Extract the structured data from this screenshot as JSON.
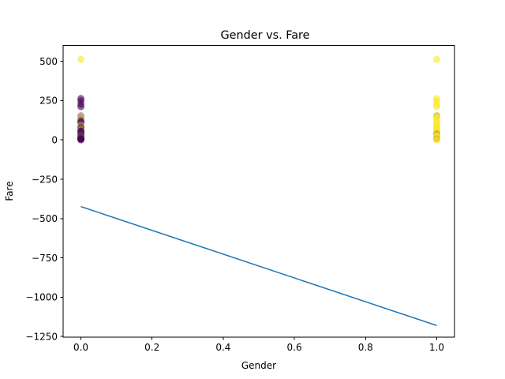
{
  "chart_data": {
    "type": "scatter",
    "title": "Gender vs. Fare",
    "xlabel": "Gender",
    "ylabel": "Fare",
    "xlim": [
      -0.05,
      1.05
    ],
    "ylim": [
      -1255,
      600
    ],
    "grid": false,
    "x_ticks": [
      {
        "value": 0.0,
        "label": "0.0"
      },
      {
        "value": 0.2,
        "label": "0.2"
      },
      {
        "value": 0.4,
        "label": "0.4"
      },
      {
        "value": 0.6,
        "label": "0.6"
      },
      {
        "value": 0.8,
        "label": "0.8"
      },
      {
        "value": 1.0,
        "label": "1.0"
      }
    ],
    "y_ticks": [
      {
        "value": 500,
        "label": "500"
      },
      {
        "value": 250,
        "label": "250"
      },
      {
        "value": 0,
        "label": "0"
      },
      {
        "value": -250,
        "label": "−250"
      },
      {
        "value": -500,
        "label": "−500"
      },
      {
        "value": -750,
        "label": "−750"
      },
      {
        "value": -1000,
        "label": "−1000"
      },
      {
        "value": -1250,
        "label": "−1250"
      }
    ],
    "colors": {
      "purple": "#440154",
      "violet": "#5b2a6e",
      "brown": "#8a6d4e",
      "olive": "#b59e36",
      "yellow": "#fde725",
      "line": "#1f77b4"
    },
    "points": [
      {
        "x": 0,
        "y": 512,
        "color": "yellow"
      },
      {
        "x": 0,
        "y": 263,
        "color": "purple"
      },
      {
        "x": 0,
        "y": 247,
        "color": "purple"
      },
      {
        "x": 0,
        "y": 227,
        "color": "purple"
      },
      {
        "x": 0,
        "y": 211,
        "color": "purple"
      },
      {
        "x": 0,
        "y": 153,
        "color": "brown"
      },
      {
        "x": 0,
        "y": 135,
        "color": "olive"
      },
      {
        "x": 0,
        "y": 120,
        "color": "purple"
      },
      {
        "x": 0,
        "y": 110,
        "color": "purple"
      },
      {
        "x": 0,
        "y": 93,
        "color": "olive"
      },
      {
        "x": 0,
        "y": 82,
        "color": "brown"
      },
      {
        "x": 0,
        "y": 76,
        "color": "purple"
      },
      {
        "x": 0,
        "y": 69,
        "color": "olive"
      },
      {
        "x": 0,
        "y": 56,
        "color": "purple"
      },
      {
        "x": 0,
        "y": 52,
        "color": "purple"
      },
      {
        "x": 0,
        "y": 40,
        "color": "purple"
      },
      {
        "x": 0,
        "y": 30,
        "color": "brown"
      },
      {
        "x": 0,
        "y": 26,
        "color": "purple"
      },
      {
        "x": 0,
        "y": 15,
        "color": "purple"
      },
      {
        "x": 0,
        "y": 13,
        "color": "olive"
      },
      {
        "x": 0,
        "y": 10,
        "color": "purple"
      },
      {
        "x": 0,
        "y": 8,
        "color": "purple"
      },
      {
        "x": 0,
        "y": 7,
        "color": "violet"
      },
      {
        "x": 0,
        "y": 5,
        "color": "purple"
      },
      {
        "x": 0,
        "y": 0,
        "color": "purple"
      },
      {
        "x": 1,
        "y": 512,
        "color": "yellow"
      },
      {
        "x": 1,
        "y": 263,
        "color": "yellow"
      },
      {
        "x": 1,
        "y": 247,
        "color": "yellow"
      },
      {
        "x": 1,
        "y": 227,
        "color": "yellow"
      },
      {
        "x": 1,
        "y": 211,
        "color": "yellow"
      },
      {
        "x": 1,
        "y": 153,
        "color": "olive"
      },
      {
        "x": 1,
        "y": 146,
        "color": "yellow"
      },
      {
        "x": 1,
        "y": 134,
        "color": "yellow"
      },
      {
        "x": 1,
        "y": 120,
        "color": "yellow"
      },
      {
        "x": 1,
        "y": 108,
        "color": "yellow"
      },
      {
        "x": 1,
        "y": 91,
        "color": "yellow"
      },
      {
        "x": 1,
        "y": 83,
        "color": "yellow"
      },
      {
        "x": 1,
        "y": 78,
        "color": "yellow"
      },
      {
        "x": 1,
        "y": 71,
        "color": "yellow"
      },
      {
        "x": 1,
        "y": 57,
        "color": "yellow"
      },
      {
        "x": 1,
        "y": 52,
        "color": "yellow"
      },
      {
        "x": 1,
        "y": 39,
        "color": "olive"
      },
      {
        "x": 1,
        "y": 31,
        "color": "olive"
      },
      {
        "x": 1,
        "y": 26,
        "color": "yellow"
      },
      {
        "x": 1,
        "y": 20,
        "color": "yellow"
      },
      {
        "x": 1,
        "y": 13,
        "color": "yellow"
      },
      {
        "x": 1,
        "y": 10,
        "color": "yellow"
      },
      {
        "x": 1,
        "y": 8,
        "color": "yellow"
      },
      {
        "x": 1,
        "y": 7,
        "color": "olive"
      },
      {
        "x": 1,
        "y": 0,
        "color": "yellow"
      }
    ],
    "regression_line": {
      "x": [
        0,
        1
      ],
      "y": [
        -424,
        -1180
      ],
      "color": "line"
    }
  }
}
